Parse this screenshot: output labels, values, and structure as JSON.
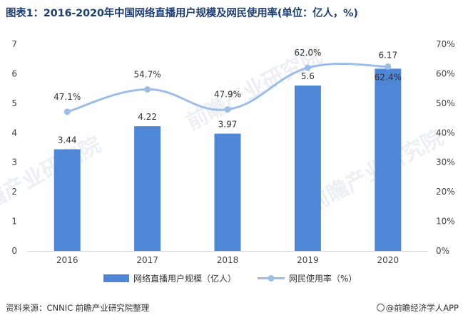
{
  "title": "图表1：2016-2020年中国网络直播用户规模及网民使用率(单位：亿人，%)",
  "source": "资料来源：CNNIC 前瞻产业研究院整理",
  "brand": "@前瞻经济学人APP",
  "watermark": "前瞻产业研究院",
  "colors": {
    "bar": "#4f86d6",
    "line": "#9dbde6",
    "grid": "#e6e6e6",
    "title": "#1f3f73"
  },
  "chart_data": {
    "type": "bar+line",
    "categories": [
      "2016",
      "2017",
      "2018",
      "2019",
      "2020"
    ],
    "series": [
      {
        "name": "网络直播用户规模（亿人）",
        "type": "bar",
        "axis": "left",
        "values": [
          3.44,
          4.22,
          3.97,
          5.6,
          6.17
        ],
        "labels": [
          "3.44",
          "4.22",
          "3.97",
          "5.6",
          "6.17"
        ]
      },
      {
        "name": "网民使用率（%）",
        "type": "line",
        "axis": "right",
        "values": [
          47.1,
          54.7,
          47.9,
          62.0,
          62.4
        ],
        "labels": [
          "47.1%",
          "54.7%",
          "47.9%",
          "62.0%",
          "62.4%"
        ]
      }
    ],
    "y_left": {
      "range": [
        0,
        7
      ],
      "ticks": [
        "0",
        "1",
        "2",
        "3",
        "4",
        "5",
        "6",
        "7"
      ]
    },
    "y_right": {
      "range": [
        0,
        70
      ],
      "ticks": [
        "0%",
        "10%",
        "20%",
        "30%",
        "40%",
        "50%",
        "60%",
        "70%"
      ]
    },
    "legend_position": "bottom-center",
    "grid": false
  }
}
